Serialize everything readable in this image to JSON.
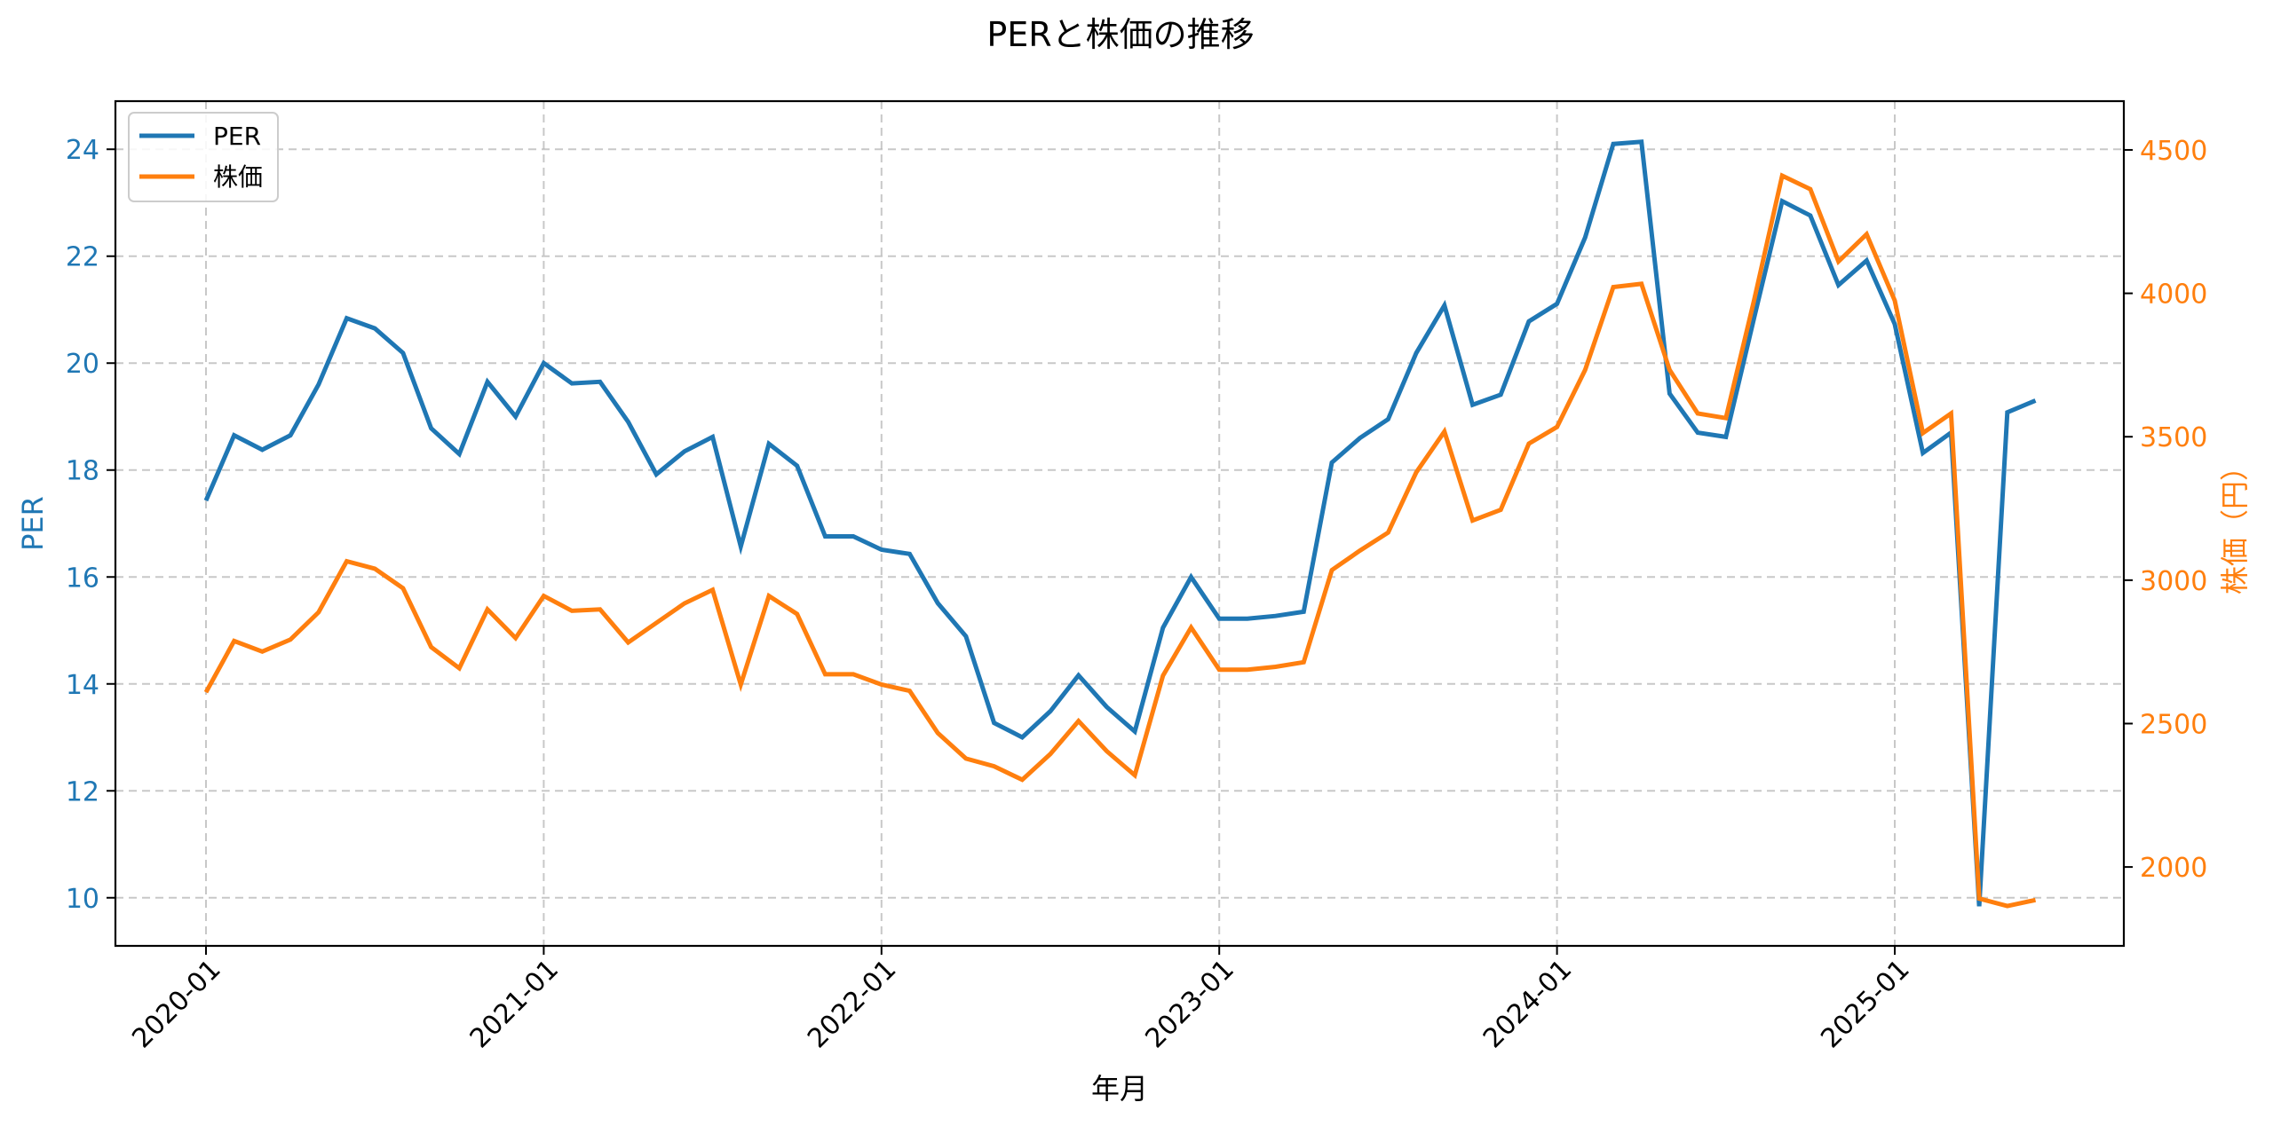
{
  "chart_data": {
    "type": "line",
    "title": "PERと株価の推移",
    "xlabel": "年月",
    "ylabel_left": "PER",
    "ylabel_right": "株価（円）",
    "ylim_left": [
      9.1,
      24.9
    ],
    "ylim_right": [
      1725,
      4670
    ],
    "yticks_left": [
      10,
      12,
      14,
      16,
      18,
      20,
      22,
      24
    ],
    "yticks_right": [
      2000,
      2500,
      3000,
      3500,
      4000,
      4500
    ],
    "xticks": [
      "2020-01",
      "2021-01",
      "2022-01",
      "2023-01",
      "2024-01",
      "2025-01"
    ],
    "xtick_index": [
      0,
      12,
      24,
      36,
      48,
      60
    ],
    "grid": true,
    "legend_position": "upper left",
    "x": [
      "2020-01",
      "2020-02",
      "2020-03",
      "2020-04",
      "2020-05",
      "2020-06",
      "2020-07",
      "2020-08",
      "2020-09",
      "2020-10",
      "2020-11",
      "2020-12",
      "2021-01",
      "2021-02",
      "2021-03",
      "2021-04",
      "2021-05",
      "2021-06",
      "2021-07",
      "2021-08",
      "2021-09",
      "2021-10",
      "2021-11",
      "2021-12",
      "2022-01",
      "2022-02",
      "2022-03",
      "2022-04",
      "2022-05",
      "2022-06",
      "2022-07",
      "2022-08",
      "2022-09",
      "2022-10",
      "2022-11",
      "2022-12",
      "2023-01",
      "2023-02",
      "2023-03",
      "2023-04",
      "2023-05",
      "2023-06",
      "2023-07",
      "2023-08",
      "2023-09",
      "2023-10",
      "2023-11",
      "2023-12",
      "2024-01",
      "2024-02",
      "2024-03",
      "2024-04",
      "2024-05",
      "2024-06",
      "2024-07",
      "2024-08",
      "2024-09",
      "2024-10",
      "2024-11",
      "2024-12",
      "2025-01",
      "2025-02",
      "2025-03",
      "2025-04",
      "2025-05",
      "2025-06"
    ],
    "series": [
      {
        "name": "PER",
        "axis": "left",
        "color": "#1f77b4",
        "values": [
          17.43,
          18.65,
          18.38,
          18.65,
          19.6,
          20.84,
          20.65,
          20.19,
          18.78,
          18.3,
          19.65,
          19.0,
          20.0,
          19.62,
          19.65,
          18.9,
          17.92,
          18.35,
          18.62,
          16.57,
          18.49,
          18.08,
          16.76,
          16.76,
          16.51,
          16.43,
          15.51,
          14.89,
          13.27,
          13.0,
          13.49,
          14.16,
          13.57,
          13.11,
          15.05,
          16.0,
          15.22,
          15.22,
          15.27,
          15.35,
          18.14,
          18.6,
          18.95,
          20.19,
          21.08,
          19.22,
          19.41,
          20.78,
          21.11,
          22.35,
          24.1,
          24.14,
          19.43,
          18.7,
          18.62,
          20.84,
          23.03,
          22.76,
          21.46,
          21.92,
          20.73,
          18.32,
          18.7,
          9.84,
          19.08,
          19.3
        ]
      },
      {
        "name": "株価",
        "axis": "right",
        "color": "#ff7f0e",
        "values": [
          2609,
          2788,
          2751,
          2793,
          2888,
          3066,
          3040,
          2972,
          2767,
          2693,
          2898,
          2798,
          2945,
          2893,
          2898,
          2783,
          2851,
          2919,
          2966,
          2636,
          2945,
          2882,
          2672,
          2672,
          2636,
          2614,
          2467,
          2378,
          2351,
          2304,
          2394,
          2509,
          2404,
          2320,
          2667,
          2835,
          2688,
          2688,
          2698,
          2714,
          3035,
          3103,
          3166,
          3376,
          3518,
          3208,
          3245,
          3476,
          3534,
          3733,
          4022,
          4033,
          3733,
          3581,
          3565,
          3975,
          4410,
          4363,
          4111,
          4206,
          3975,
          3513,
          3581,
          1890,
          1864,
          1885
        ]
      }
    ]
  }
}
